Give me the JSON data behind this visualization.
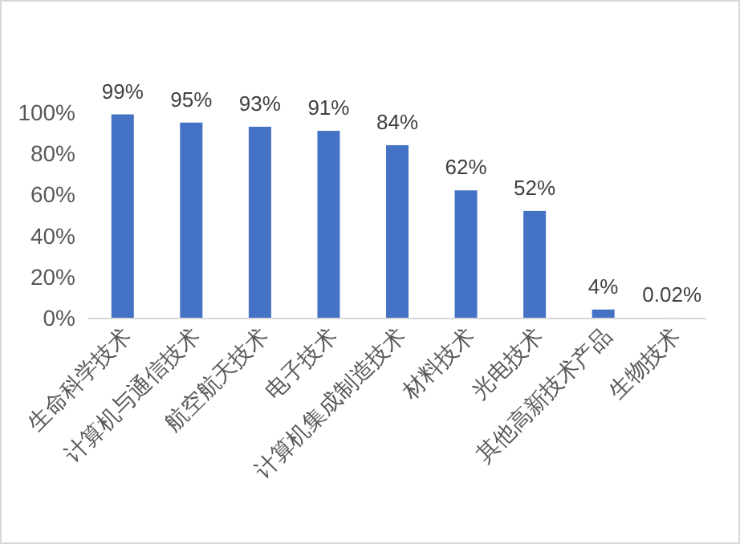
{
  "chart_data": {
    "type": "bar",
    "categories": [
      "生命科学技术",
      "计算机与通信技术",
      "航空航天技术",
      "电子技术",
      "计算机集成制造技术",
      "材料技术",
      "光电技术",
      "其他高新技术产品",
      "生物技术"
    ],
    "values": [
      99,
      95,
      93,
      91,
      84,
      62,
      52,
      4,
      0.02
    ],
    "value_labels": [
      "99%",
      "95%",
      "93%",
      "91%",
      "84%",
      "62%",
      "52%",
      "4%",
      "0.02%"
    ],
    "color": "#4472c4",
    "ylim": [
      0,
      100
    ],
    "yticks": [
      {
        "value": 0,
        "label": "0%"
      },
      {
        "value": 20,
        "label": "20%"
      },
      {
        "value": 40,
        "label": "40%"
      },
      {
        "value": 60,
        "label": "60%"
      },
      {
        "value": 80,
        "label": "80%"
      },
      {
        "value": 100,
        "label": "100%"
      }
    ],
    "grid": false
  }
}
